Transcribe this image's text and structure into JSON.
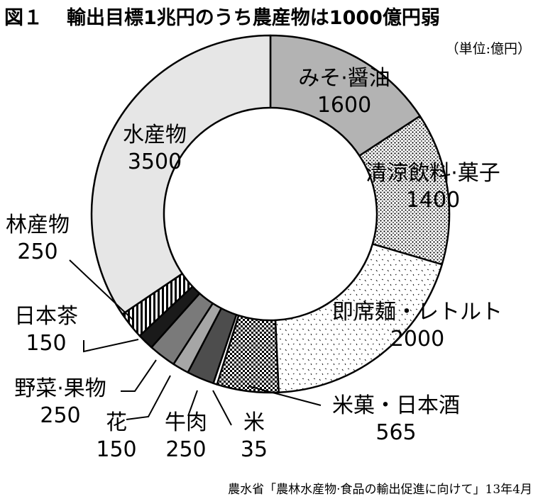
{
  "title": {
    "figure_label": "図１",
    "text": "輸出目標1兆円のうち農産物は1000億円弱"
  },
  "unit": "（単位:億円）",
  "source": "農水省「農林水産物·食品の輸出促進に向けて」13年4月",
  "chart_data": {
    "type": "donut",
    "title": "輸出目標1兆円のうち農産物は1000億円弱",
    "unit": "億円",
    "start_angle_deg": 0,
    "direction": "clockwise",
    "slices": [
      {
        "label": "みそ·醤油",
        "value": 1600,
        "fill": "#b3b3b3",
        "pattern": "solid"
      },
      {
        "label": "清涼飲料·菓子",
        "value": 1400,
        "fill": "#ffffff",
        "pattern": "dense-dots"
      },
      {
        "label": "即席麺・レトルト",
        "value": 2000,
        "fill": "#ffffff",
        "pattern": "sparse-dashes"
      },
      {
        "label": "米菓・日本酒",
        "value": 565,
        "fill": "#000000",
        "pattern": "checker"
      },
      {
        "label": "米",
        "value": 35,
        "fill": "#ffffff",
        "pattern": "solid"
      },
      {
        "label": "牛肉",
        "value": 250,
        "fill": "#4d4d4d",
        "pattern": "solid"
      },
      {
        "label": "花",
        "value": 150,
        "fill": "#a6a6a6",
        "pattern": "solid"
      },
      {
        "label": "野菜·果物",
        "value": 250,
        "fill": "#7a7a7a",
        "pattern": "solid"
      },
      {
        "label": "日本茶",
        "value": 150,
        "fill": "#1a1a1a",
        "pattern": "solid"
      },
      {
        "label": "林産物",
        "value": 250,
        "fill": "#ffffff",
        "pattern": "vertical-stripes"
      },
      {
        "label": "水産物",
        "value": 3500,
        "fill": "#e6e6e6",
        "pattern": "solid"
      }
    ]
  }
}
